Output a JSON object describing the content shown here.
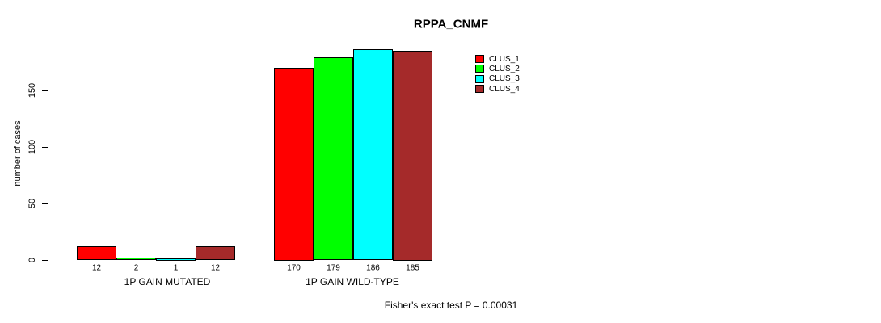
{
  "title": "RPPA_CNMF",
  "chart_data": {
    "type": "bar",
    "title": "RPPA_CNMF",
    "ylabel": "number of cases",
    "xlabel": "",
    "yticks": [
      0,
      50,
      100,
      150
    ],
    "ylim": [
      0,
      190
    ],
    "grid": false,
    "legend_position": "top-right",
    "categories": [
      "1P GAIN MUTATED",
      "1P GAIN WILD-TYPE"
    ],
    "series": [
      {
        "name": "CLUS_1",
        "color": "#FF0000",
        "values": [
          12,
          170
        ]
      },
      {
        "name": "CLUS_2",
        "color": "#00FF00",
        "values": [
          2,
          179
        ]
      },
      {
        "name": "CLUS_3",
        "color": "#00FFFF",
        "values": [
          1,
          186
        ]
      },
      {
        "name": "CLUS_4",
        "color": "#A52A2A",
        "values": [
          12,
          185
        ]
      }
    ],
    "bar_labels": [
      [
        "12",
        "2",
        "1",
        "12"
      ],
      [
        "170",
        "179",
        "186",
        "185"
      ]
    ],
    "annotation": "Fisher's exact test P = 0.00031"
  }
}
